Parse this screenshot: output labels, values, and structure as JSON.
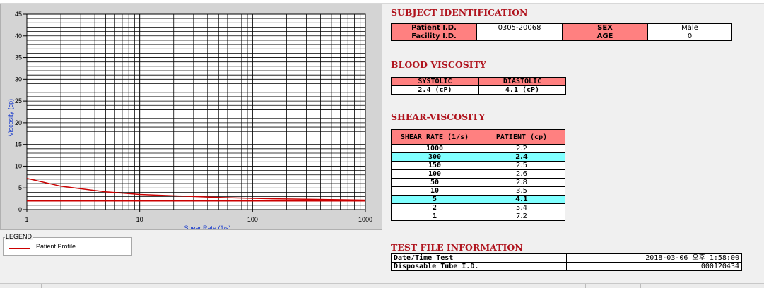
{
  "chart_data": {
    "type": "line",
    "xlabel": "Shear Rate (1/s)",
    "ylabel": "Viscosity (cp)",
    "xscale": "log",
    "xlim": [
      1,
      1000
    ],
    "ylim": [
      0,
      45
    ],
    "x_ticks": [
      "1",
      "10",
      "100",
      "1000"
    ],
    "y_ticks": [
      "0",
      "5",
      "10",
      "15",
      "20",
      "25",
      "30",
      "35",
      "40",
      "45"
    ],
    "grid": true,
    "series": [
      {
        "name": "Patient Profile",
        "color": "#cc0000",
        "x": [
          1,
          2,
          5,
          10,
          50,
          100,
          150,
          300,
          1000
        ],
        "y": [
          7.2,
          5.4,
          4.1,
          3.5,
          2.8,
          2.6,
          2.5,
          2.4,
          2.2
        ]
      }
    ],
    "reference_line": {
      "y": 2.0,
      "color": "#cc0000"
    }
  },
  "legend": {
    "title": "LEGEND",
    "item": "Patient Profile",
    "color": "#cc0000"
  },
  "subject": {
    "title": "SUBJECT IDENTIFICATION",
    "patient_id_label": "Patient I.D.",
    "patient_id": "0305-20068",
    "sex_label": "SEX",
    "sex": "Male",
    "facility_label": "Facility I.D.",
    "facility": "",
    "age_label": "AGE",
    "age": "0"
  },
  "blood": {
    "title": "BLOOD VISCOSITY",
    "systolic_label": "SYSTOLIC",
    "diastolic_label": "DIASTOLIC",
    "systolic": "2.4 (cP)",
    "diastolic": "4.1 (cP)"
  },
  "shear": {
    "title": "SHEAR-VISCOSITY",
    "rate_label": "SHEAR RATE (1/s)",
    "patient_label": "PATIENT (cp)",
    "rows": [
      {
        "rate": "1000",
        "val": "2.2",
        "hl": false
      },
      {
        "rate": "300",
        "val": "2.4",
        "hl": true
      },
      {
        "rate": "150",
        "val": "2.5",
        "hl": false
      },
      {
        "rate": "100",
        "val": "2.6",
        "hl": false
      },
      {
        "rate": "50",
        "val": "2.8",
        "hl": false
      },
      {
        "rate": "10",
        "val": "3.5",
        "hl": false
      },
      {
        "rate": "5",
        "val": "4.1",
        "hl": true
      },
      {
        "rate": "2",
        "val": "5.4",
        "hl": false
      },
      {
        "rate": "1",
        "val": "7.2",
        "hl": false
      }
    ]
  },
  "testfile": {
    "title": "TEST FILE INFORMATION",
    "datetime_label": "Date/Time Test",
    "datetime": "2018-03-06  오후 1:58:00",
    "tube_label": "Disposable Tube I.D.",
    "tube": "000120434"
  }
}
